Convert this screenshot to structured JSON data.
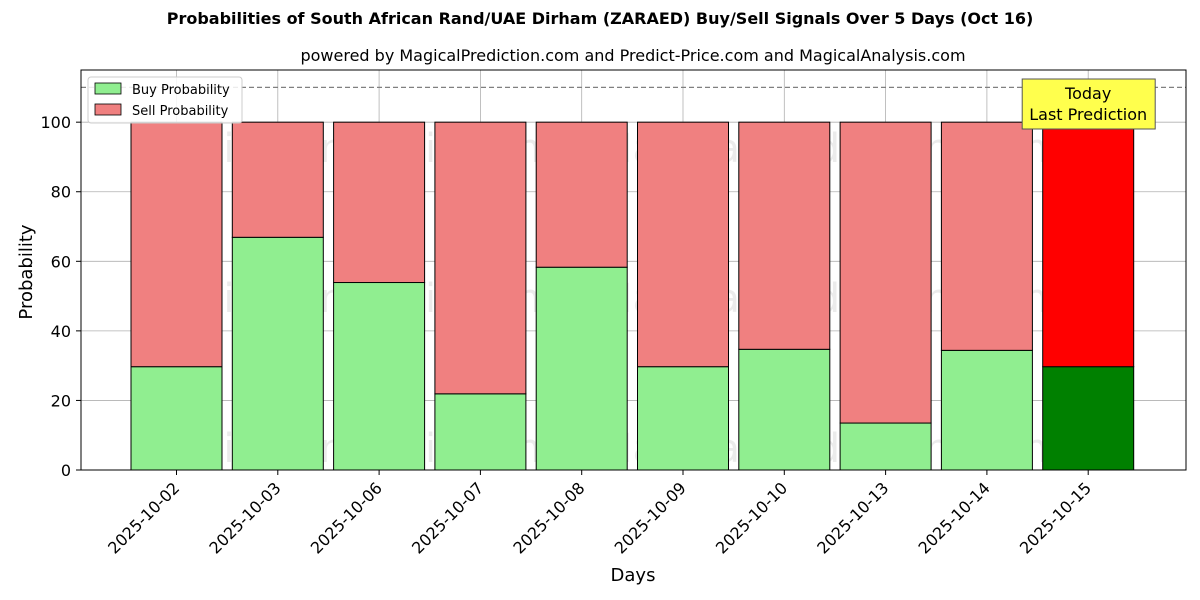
{
  "title": "Probabilities of South African Rand/UAE Dirham (ZARAED) Buy/Sell Signals Over 5 Days (Oct 16)",
  "subtitle": "powered by MagicalPrediction.com and Predict-Price.com and MagicalAnalysis.com",
  "watermarks": [
    "MagicalAnalysis.com",
    "MagicalPrediction.com"
  ],
  "today_box": {
    "line1": "Today",
    "line2": "Last Prediction",
    "color": "#ffff4d"
  },
  "chart_data": {
    "type": "bar",
    "stacked": true,
    "categories": [
      "2025-10-02",
      "2025-10-03",
      "2025-10-06",
      "2025-10-07",
      "2025-10-08",
      "2025-10-09",
      "2025-10-10",
      "2025-10-13",
      "2025-10-14",
      "2025-10-15"
    ],
    "series": [
      {
        "name": "Buy Probability",
        "color": "#90ee90",
        "values": [
          29.7,
          66.9,
          53.9,
          21.9,
          58.3,
          29.7,
          34.7,
          13.5,
          34.4,
          29.7
        ]
      },
      {
        "name": "Sell Probability",
        "color": "#f08080",
        "values": [
          70.3,
          33.1,
          46.1,
          78.1,
          41.7,
          70.3,
          65.3,
          86.5,
          65.6,
          70.3
        ]
      }
    ],
    "highlight": {
      "index": 9,
      "buy_color": "#008000",
      "sell_color": "#ff0000"
    },
    "reference_line": 110,
    "xlabel": "Days",
    "ylabel": "Probability",
    "ylim": [
      0,
      115
    ],
    "yticks": [
      0,
      20,
      40,
      60,
      80,
      100
    ],
    "grid": true,
    "legend_position": "top-left"
  }
}
